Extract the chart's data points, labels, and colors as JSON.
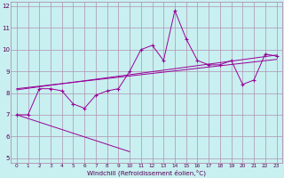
{
  "xlabel": "Windchill (Refroidissement éolien,°C)",
  "bg_color": "#c8f0f0",
  "grid_color": "#b090b0",
  "line_color": "#990099",
  "xlim": [
    -0.5,
    23.5
  ],
  "ylim": [
    4.8,
    12.2
  ],
  "xticks": [
    0,
    1,
    2,
    3,
    4,
    5,
    6,
    7,
    8,
    9,
    10,
    11,
    12,
    13,
    14,
    15,
    16,
    17,
    18,
    19,
    20,
    21,
    22,
    23
  ],
  "yticks": [
    5,
    6,
    7,
    8,
    9,
    10,
    11,
    12
  ],
  "jagged_x": [
    0,
    1,
    2,
    3,
    4,
    5,
    6,
    7,
    8,
    9,
    10,
    11,
    12,
    13,
    14,
    15,
    16,
    17,
    18,
    19,
    20,
    21,
    22,
    23
  ],
  "jagged_y": [
    7.0,
    7.0,
    8.2,
    8.2,
    8.1,
    7.5,
    7.3,
    7.9,
    8.1,
    8.2,
    9.0,
    10.0,
    10.2,
    9.5,
    11.8,
    10.5,
    9.5,
    9.3,
    9.3,
    9.5,
    8.4,
    8.6,
    9.8,
    9.7
  ],
  "low_line_x": [
    0,
    10
  ],
  "low_line_y": [
    7.0,
    5.3
  ],
  "upper_line1_x": [
    0,
    23
  ],
  "upper_line1_y": [
    8.15,
    9.75
  ],
  "upper_line2_x": [
    0,
    23
  ],
  "upper_line2_y": [
    8.2,
    9.55
  ]
}
